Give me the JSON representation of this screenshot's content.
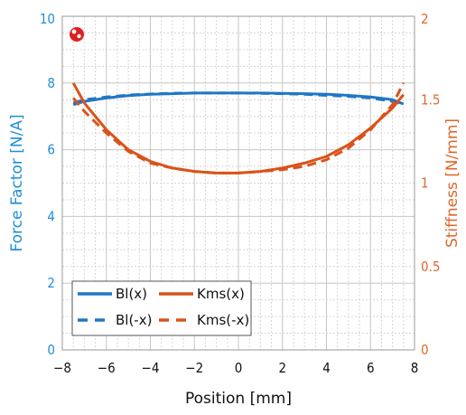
{
  "chart_data": {
    "type": "line",
    "xlabel": "Position [mm]",
    "ylabel_left": "Force Factor [N/A]",
    "ylabel_right": "Stiffness [N/mm]",
    "xlim": [
      -8,
      8
    ],
    "ylim_left": [
      0,
      10
    ],
    "ylim_right": [
      0,
      2
    ],
    "x_ticks": [
      "-8",
      "-6",
      "-4",
      "-2",
      "0",
      "2",
      "4",
      "6",
      "8"
    ],
    "y_left_ticks": [
      "0",
      "2",
      "4",
      "6",
      "8",
      "10"
    ],
    "y_right_ticks": [
      "0",
      "0.5",
      "1",
      "1.5",
      "2"
    ],
    "grid": true,
    "legend_position": "bottom-left",
    "colors": {
      "bl": "#1f77c4",
      "kms": "#d95319",
      "left_axis": "#1f8fd6",
      "right_axis": "#e0672b",
      "grid_major": "#c6c6c6",
      "grid_minor": "#d6d6d6"
    },
    "series": [
      {
        "name": "Bl(x)",
        "axis": "left",
        "color": "#1f77c4",
        "dash": "solid",
        "x": [
          -7.5,
          -7,
          -6,
          -5,
          -4,
          -3,
          -2,
          -1,
          0,
          1,
          2,
          3,
          4,
          5,
          6,
          7,
          7.5
        ],
        "y": [
          7.35,
          7.45,
          7.55,
          7.62,
          7.66,
          7.68,
          7.7,
          7.7,
          7.7,
          7.7,
          7.69,
          7.68,
          7.66,
          7.63,
          7.58,
          7.5,
          7.37
        ]
      },
      {
        "name": "Bl(-x)",
        "axis": "left",
        "color": "#1f77c4",
        "dash": "dashed",
        "x": [
          -7.5,
          -7,
          -6,
          -5,
          -4,
          -3,
          -2,
          -1,
          0,
          1,
          2,
          3,
          4,
          5,
          6,
          7,
          7.5
        ],
        "y": [
          7.4,
          7.5,
          7.58,
          7.64,
          7.67,
          7.69,
          7.7,
          7.7,
          7.7,
          7.69,
          7.68,
          7.66,
          7.63,
          7.6,
          7.55,
          7.45,
          7.35
        ]
      },
      {
        "name": "Kms(x)",
        "axis": "right",
        "color": "#d95319",
        "dash": "solid",
        "x": [
          -7.5,
          -7,
          -6,
          -5,
          -4,
          -3,
          -2,
          -1,
          0,
          1,
          2,
          3,
          4,
          5,
          6,
          7,
          7.5
        ],
        "y": [
          1.6,
          1.48,
          1.32,
          1.2,
          1.13,
          1.09,
          1.07,
          1.06,
          1.06,
          1.07,
          1.09,
          1.12,
          1.16,
          1.23,
          1.33,
          1.45,
          1.53
        ]
      },
      {
        "name": "Kms(-x)",
        "axis": "right",
        "color": "#d95319",
        "dash": "dashed",
        "x": [
          -7.5,
          -7,
          -6,
          -5,
          -4,
          -3,
          -2,
          -1,
          0,
          1,
          2,
          3,
          4,
          5,
          6,
          7,
          7.5
        ],
        "y": [
          1.51,
          1.43,
          1.3,
          1.19,
          1.12,
          1.09,
          1.07,
          1.06,
          1.06,
          1.07,
          1.08,
          1.1,
          1.14,
          1.21,
          1.32,
          1.47,
          1.6
        ]
      }
    ],
    "legend": {
      "entries": [
        "Bl(x)",
        "Kms(x)",
        "Bl(-x)",
        "Kms(-x)"
      ]
    }
  }
}
